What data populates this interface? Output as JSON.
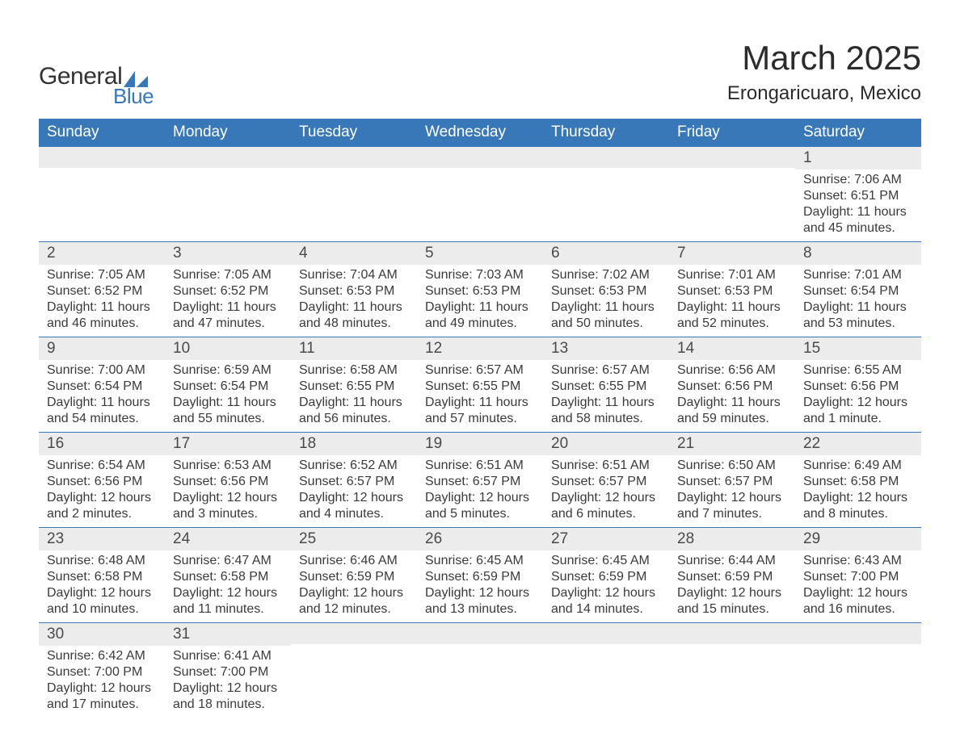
{
  "brand": {
    "text_general": "General",
    "text_blue": "Blue",
    "logo_color": "#3878b8"
  },
  "title": {
    "month": "March 2025",
    "location": "Erongaricuaro, Mexico"
  },
  "colors": {
    "header_bg": "#3878b8",
    "header_text": "#ffffff",
    "daynum_bg": "#ececec",
    "body_text": "#3a3a3a",
    "row_border": "#3878b8",
    "page_bg": "#ffffff"
  },
  "typography": {
    "month_title_fontsize": 42,
    "location_fontsize": 24,
    "weekday_fontsize": 19,
    "daynum_fontsize": 19,
    "body_fontsize": 16
  },
  "weekdays": [
    "Sunday",
    "Monday",
    "Tuesday",
    "Wednesday",
    "Thursday",
    "Friday",
    "Saturday"
  ],
  "weeks": [
    [
      {
        "n": "",
        "sr": "",
        "ss": "",
        "dl": ""
      },
      {
        "n": "",
        "sr": "",
        "ss": "",
        "dl": ""
      },
      {
        "n": "",
        "sr": "",
        "ss": "",
        "dl": ""
      },
      {
        "n": "",
        "sr": "",
        "ss": "",
        "dl": ""
      },
      {
        "n": "",
        "sr": "",
        "ss": "",
        "dl": ""
      },
      {
        "n": "",
        "sr": "",
        "ss": "",
        "dl": ""
      },
      {
        "n": "1",
        "sr": "Sunrise: 7:06 AM",
        "ss": "Sunset: 6:51 PM",
        "dl": "Daylight: 11 hours and 45 minutes."
      }
    ],
    [
      {
        "n": "2",
        "sr": "Sunrise: 7:05 AM",
        "ss": "Sunset: 6:52 PM",
        "dl": "Daylight: 11 hours and 46 minutes."
      },
      {
        "n": "3",
        "sr": "Sunrise: 7:05 AM",
        "ss": "Sunset: 6:52 PM",
        "dl": "Daylight: 11 hours and 47 minutes."
      },
      {
        "n": "4",
        "sr": "Sunrise: 7:04 AM",
        "ss": "Sunset: 6:53 PM",
        "dl": "Daylight: 11 hours and 48 minutes."
      },
      {
        "n": "5",
        "sr": "Sunrise: 7:03 AM",
        "ss": "Sunset: 6:53 PM",
        "dl": "Daylight: 11 hours and 49 minutes."
      },
      {
        "n": "6",
        "sr": "Sunrise: 7:02 AM",
        "ss": "Sunset: 6:53 PM",
        "dl": "Daylight: 11 hours and 50 minutes."
      },
      {
        "n": "7",
        "sr": "Sunrise: 7:01 AM",
        "ss": "Sunset: 6:53 PM",
        "dl": "Daylight: 11 hours and 52 minutes."
      },
      {
        "n": "8",
        "sr": "Sunrise: 7:01 AM",
        "ss": "Sunset: 6:54 PM",
        "dl": "Daylight: 11 hours and 53 minutes."
      }
    ],
    [
      {
        "n": "9",
        "sr": "Sunrise: 7:00 AM",
        "ss": "Sunset: 6:54 PM",
        "dl": "Daylight: 11 hours and 54 minutes."
      },
      {
        "n": "10",
        "sr": "Sunrise: 6:59 AM",
        "ss": "Sunset: 6:54 PM",
        "dl": "Daylight: 11 hours and 55 minutes."
      },
      {
        "n": "11",
        "sr": "Sunrise: 6:58 AM",
        "ss": "Sunset: 6:55 PM",
        "dl": "Daylight: 11 hours and 56 minutes."
      },
      {
        "n": "12",
        "sr": "Sunrise: 6:57 AM",
        "ss": "Sunset: 6:55 PM",
        "dl": "Daylight: 11 hours and 57 minutes."
      },
      {
        "n": "13",
        "sr": "Sunrise: 6:57 AM",
        "ss": "Sunset: 6:55 PM",
        "dl": "Daylight: 11 hours and 58 minutes."
      },
      {
        "n": "14",
        "sr": "Sunrise: 6:56 AM",
        "ss": "Sunset: 6:56 PM",
        "dl": "Daylight: 11 hours and 59 minutes."
      },
      {
        "n": "15",
        "sr": "Sunrise: 6:55 AM",
        "ss": "Sunset: 6:56 PM",
        "dl": "Daylight: 12 hours and 1 minute."
      }
    ],
    [
      {
        "n": "16",
        "sr": "Sunrise: 6:54 AM",
        "ss": "Sunset: 6:56 PM",
        "dl": "Daylight: 12 hours and 2 minutes."
      },
      {
        "n": "17",
        "sr": "Sunrise: 6:53 AM",
        "ss": "Sunset: 6:56 PM",
        "dl": "Daylight: 12 hours and 3 minutes."
      },
      {
        "n": "18",
        "sr": "Sunrise: 6:52 AM",
        "ss": "Sunset: 6:57 PM",
        "dl": "Daylight: 12 hours and 4 minutes."
      },
      {
        "n": "19",
        "sr": "Sunrise: 6:51 AM",
        "ss": "Sunset: 6:57 PM",
        "dl": "Daylight: 12 hours and 5 minutes."
      },
      {
        "n": "20",
        "sr": "Sunrise: 6:51 AM",
        "ss": "Sunset: 6:57 PM",
        "dl": "Daylight: 12 hours and 6 minutes."
      },
      {
        "n": "21",
        "sr": "Sunrise: 6:50 AM",
        "ss": "Sunset: 6:57 PM",
        "dl": "Daylight: 12 hours and 7 minutes."
      },
      {
        "n": "22",
        "sr": "Sunrise: 6:49 AM",
        "ss": "Sunset: 6:58 PM",
        "dl": "Daylight: 12 hours and 8 minutes."
      }
    ],
    [
      {
        "n": "23",
        "sr": "Sunrise: 6:48 AM",
        "ss": "Sunset: 6:58 PM",
        "dl": "Daylight: 12 hours and 10 minutes."
      },
      {
        "n": "24",
        "sr": "Sunrise: 6:47 AM",
        "ss": "Sunset: 6:58 PM",
        "dl": "Daylight: 12 hours and 11 minutes."
      },
      {
        "n": "25",
        "sr": "Sunrise: 6:46 AM",
        "ss": "Sunset: 6:59 PM",
        "dl": "Daylight: 12 hours and 12 minutes."
      },
      {
        "n": "26",
        "sr": "Sunrise: 6:45 AM",
        "ss": "Sunset: 6:59 PM",
        "dl": "Daylight: 12 hours and 13 minutes."
      },
      {
        "n": "27",
        "sr": "Sunrise: 6:45 AM",
        "ss": "Sunset: 6:59 PM",
        "dl": "Daylight: 12 hours and 14 minutes."
      },
      {
        "n": "28",
        "sr": "Sunrise: 6:44 AM",
        "ss": "Sunset: 6:59 PM",
        "dl": "Daylight: 12 hours and 15 minutes."
      },
      {
        "n": "29",
        "sr": "Sunrise: 6:43 AM",
        "ss": "Sunset: 7:00 PM",
        "dl": "Daylight: 12 hours and 16 minutes."
      }
    ],
    [
      {
        "n": "30",
        "sr": "Sunrise: 6:42 AM",
        "ss": "Sunset: 7:00 PM",
        "dl": "Daylight: 12 hours and 17 minutes."
      },
      {
        "n": "31",
        "sr": "Sunrise: 6:41 AM",
        "ss": "Sunset: 7:00 PM",
        "dl": "Daylight: 12 hours and 18 minutes."
      },
      {
        "n": "",
        "sr": "",
        "ss": "",
        "dl": ""
      },
      {
        "n": "",
        "sr": "",
        "ss": "",
        "dl": ""
      },
      {
        "n": "",
        "sr": "",
        "ss": "",
        "dl": ""
      },
      {
        "n": "",
        "sr": "",
        "ss": "",
        "dl": ""
      },
      {
        "n": "",
        "sr": "",
        "ss": "",
        "dl": ""
      }
    ]
  ]
}
